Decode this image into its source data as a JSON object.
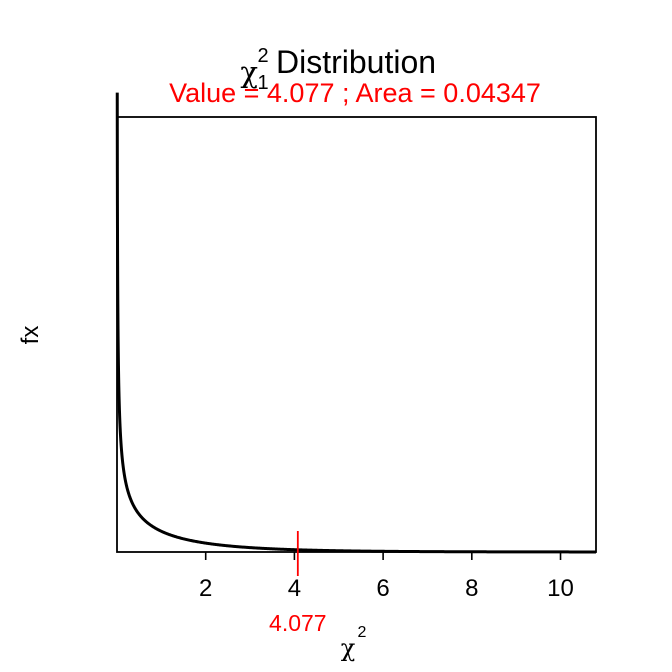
{
  "chart_data": {
    "type": "line",
    "title": {
      "symbol": "χ",
      "superscript": "2",
      "subscript": "1",
      "text": "Distribution"
    },
    "subtitle": "Value = 4.077 ; Area = 0.04347",
    "xlabel": {
      "symbol": "χ",
      "superscript": "2"
    },
    "ylabel": "fx",
    "xlim": [
      0,
      10.8
    ],
    "ylim": [
      0,
      5.08
    ],
    "x_ticks": [
      2,
      4,
      6,
      8,
      10
    ],
    "y_ticks_shown": false,
    "grid": false,
    "legend": "none",
    "series": [
      {
        "distribution": "chi-square",
        "df": 1,
        "x_range": [
          0.0055,
          10.8
        ],
        "color": "#000000"
      }
    ],
    "critical_value": {
      "x": 4.077,
      "label": "4.077",
      "area": 0.04347,
      "color": "#ff0000"
    },
    "colors": {
      "curve": "#000000",
      "annotation": "#ff0000"
    }
  }
}
